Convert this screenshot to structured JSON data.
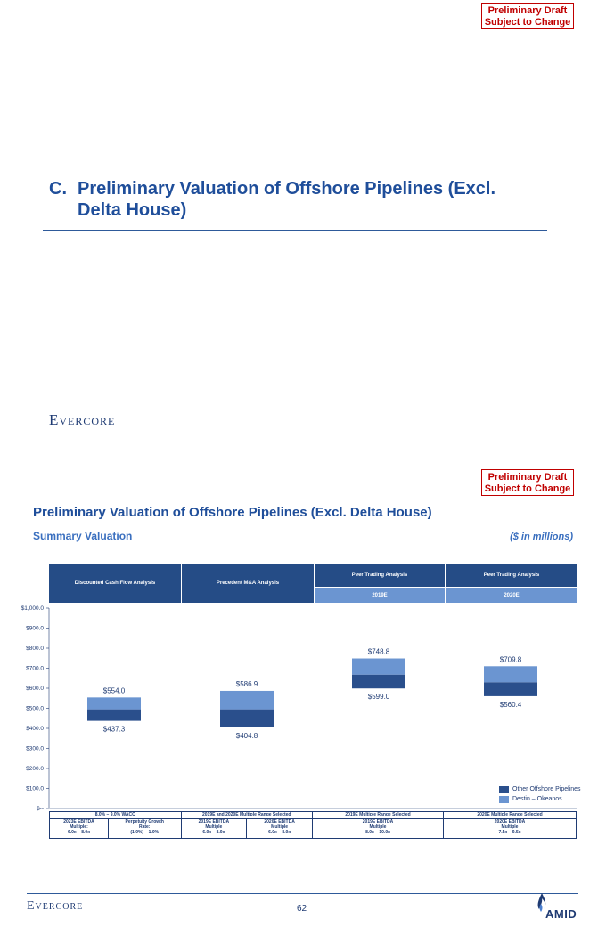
{
  "slide1": {
    "draft_line1": "Preliminary Draft",
    "draft_line2": "Subject to Change",
    "section_letter": "C.",
    "section_title_line1": "Preliminary Valuation of Offshore Pipelines (Excl.",
    "section_title_line2": "Delta House)",
    "brand": "Evercore"
  },
  "slide2": {
    "draft_line1": "Preliminary Draft",
    "draft_line2": "Subject to Change",
    "title": "Preliminary Valuation of Offshore Pipelines (Excl. Delta House)",
    "subtitle": "Summary Valuation",
    "units": "($ in millions)",
    "headers": {
      "dcf": "Discounted Cash Flow Analysis",
      "mna": "Precedent M&A Analysis",
      "peer1": "Peer Trading Analysis",
      "peer1_sub": "2019E",
      "peer2": "Peer Trading Analysis",
      "peer2_sub": "2020E"
    },
    "footer": {
      "top": [
        "8.0% – 9.0% WACC",
        "2019E and 2020E Multiple Range Selected",
        "2019E Multiple Range Selected",
        "2020E Multiple Range Selected"
      ],
      "bottom": [
        {
          "l1": "2023E EBITDA",
          "l2": "Multiple:",
          "l3": "6.0x – 8.0x"
        },
        {
          "l1": "Perpetuity Growth",
          "l2": "Rate:",
          "l3": "(1.0%) – 1.0%"
        },
        {
          "l1": "2019E EBITDA",
          "l2": "Multiple",
          "l3": "6.0x – 8.0x"
        },
        {
          "l1": "2020E EBITDA",
          "l2": "Multiple",
          "l3": "6.0x – 8.0x"
        },
        {
          "l1": "2019E EBITDA",
          "l2": "Multiple",
          "l3": "8.0x – 10.0x"
        },
        {
          "l1": "2020E EBITDA",
          "l2": "Multiple",
          "l3": "7.5x – 9.5x"
        }
      ]
    },
    "brand": "Evercore",
    "page_number": "62",
    "client_logo": "AMID",
    "colors": {
      "dark_series": "#2a4f8c",
      "light_series": "#6b95d1",
      "header": "#254c86"
    }
  },
  "chart_data": {
    "type": "bar",
    "subtype": "floating-range-stacked",
    "categories": [
      "Discounted Cash Flow Analysis",
      "Precedent M&A Analysis",
      "Peer Trading Analysis 2019E",
      "Peer Trading Analysis 2020E"
    ],
    "low": [
      437.3,
      404.8,
      599.0,
      560.4
    ],
    "high": [
      554.0,
      586.9,
      748.8,
      709.8
    ],
    "split": [
      495.0,
      495.0,
      668.0,
      630.0
    ],
    "low_labels": [
      "$437.3",
      "$404.8",
      "$599.0",
      "$560.4"
    ],
    "high_labels": [
      "$554.0",
      "$586.9",
      "$748.8",
      "$709.8"
    ],
    "series": [
      {
        "name": "Other Offshore Pipelines",
        "color": "#2a4f8c"
      },
      {
        "name": "Destin – Okeanos",
        "color": "#6b95d1"
      }
    ],
    "ylim": [
      0,
      1000
    ],
    "yticks": [
      0,
      100,
      200,
      300,
      400,
      500,
      600,
      700,
      800,
      900,
      1000
    ],
    "ytick_labels": [
      "$--",
      "$100.0",
      "$200.0",
      "$300.0",
      "$400.0",
      "$500.0",
      "$600.0",
      "$700.0",
      "$800.0",
      "$900.0",
      "$1,000.0"
    ],
    "legend": "bottom-right",
    "grid": false
  }
}
